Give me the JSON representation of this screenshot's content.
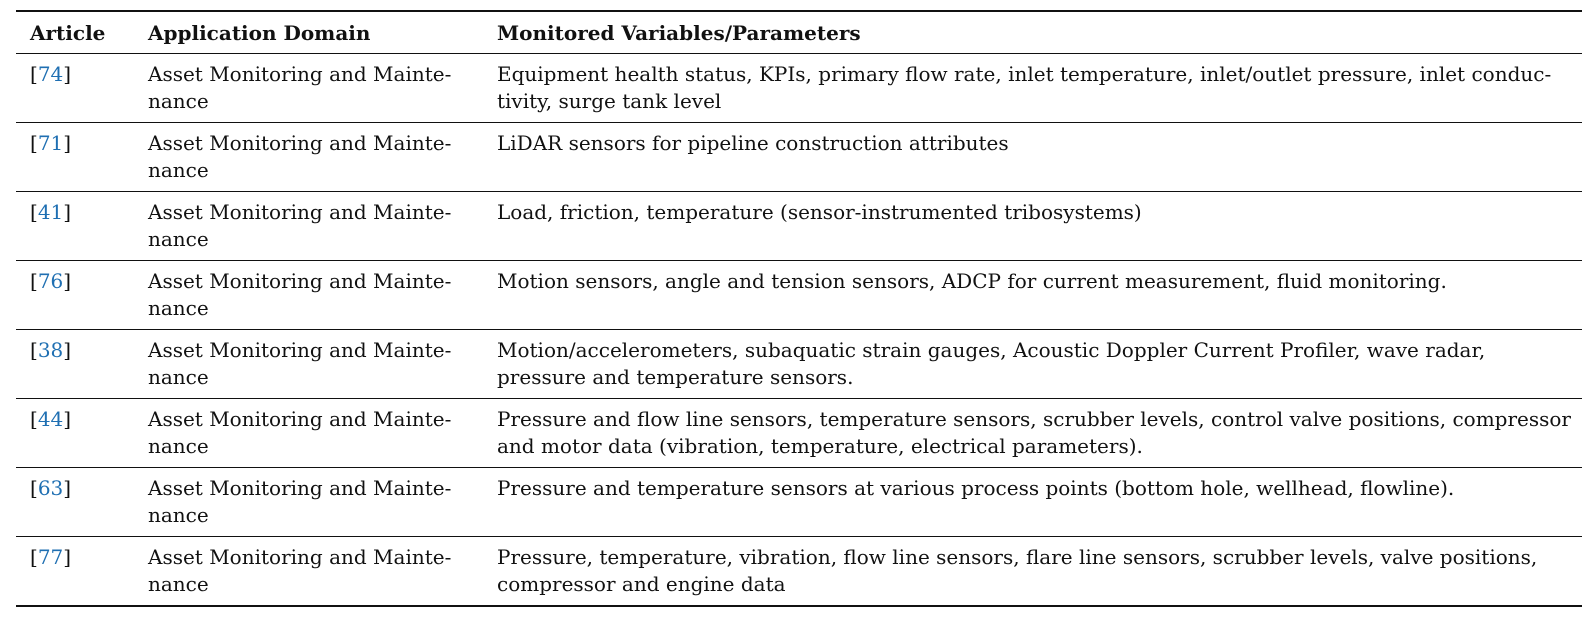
{
  "headers": {
    "article": "Article",
    "domain": "Application Domain",
    "variables": "Monitored Variables/Parameters"
  },
  "rows": [
    {
      "ref": "74",
      "domain_line1": "Asset Monitoring and Mainte-",
      "domain_line2": "nance",
      "var_line1": "Equipment health status, KPIs, primary flow rate, inlet temperature, inlet/outlet pressure, inlet conduc-",
      "var_line2": "tivity, surge tank level"
    },
    {
      "ref": "71",
      "domain_line1": "Asset Monitoring and Mainte-",
      "domain_line2": "nance",
      "var_line1": "LiDAR sensors for pipeline construction attributes",
      "var_line2": ""
    },
    {
      "ref": "41",
      "domain_line1": "Asset Monitoring and Mainte-",
      "domain_line2": "nance",
      "var_line1": "Load, friction, temperature (sensor-instrumented tribosystems)",
      "var_line2": ""
    },
    {
      "ref": "76",
      "domain_line1": "Asset Monitoring and Mainte-",
      "domain_line2": "nance",
      "var_line1": "Motion sensors, angle and tension sensors, ADCP for current measurement, fluid monitoring.",
      "var_line2": ""
    },
    {
      "ref": "38",
      "domain_line1": "Asset Monitoring and Mainte-",
      "domain_line2": "nance",
      "var_line1": "Motion/accelerometers, subaquatic strain gauges, Acoustic Doppler Current Profiler, wave radar,",
      "var_line2": "pressure and temperature sensors."
    },
    {
      "ref": "44",
      "domain_line1": "Asset Monitoring and Mainte-",
      "domain_line2": "nance",
      "var_line1": "Pressure and flow line sensors, temperature sensors, scrubber levels, control valve positions, compressor",
      "var_line2": "and motor data (vibration, temperature, electrical parameters)."
    },
    {
      "ref": "63",
      "domain_line1": "Asset Monitoring and Mainte-",
      "domain_line2": "nance",
      "var_line1": "Pressure and temperature sensors at various process points (bottom hole, wellhead, flowline).",
      "var_line2": ""
    },
    {
      "ref": "77",
      "domain_line1": "Asset Monitoring and Mainte-",
      "domain_line2": "nance",
      "var_line1": "Pressure, temperature, vibration, flow line sensors, flare line sensors, scrubber levels, valve positions,",
      "var_line2": "compressor and engine data"
    }
  ]
}
